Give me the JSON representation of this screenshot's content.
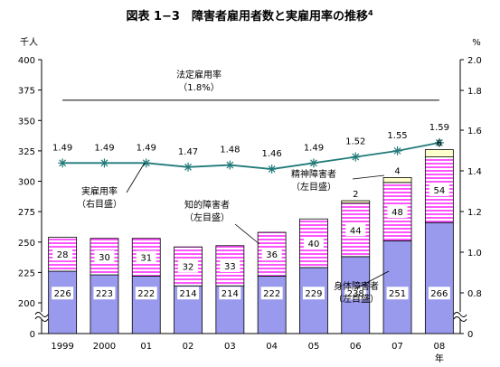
{
  "chart_data": {
    "type": "bar",
    "title": "図表 1−3　障害者雇用者数と実雇用率の推移",
    "title_sup": "4",
    "left_axis": {
      "unit": "千人",
      "ticks": [
        "0",
        "200",
        "225",
        "250",
        "275",
        "300",
        "325",
        "350",
        "375",
        "400"
      ],
      "ylim": [
        200,
        400
      ],
      "axis_break": true
    },
    "right_axis": {
      "unit": "%",
      "ticks": [
        "0",
        "0.8",
        "1.0",
        "1.2",
        "1.4",
        "1.6",
        "1.8",
        "2.0"
      ],
      "ylim": [
        0.8,
        2.0
      ],
      "axis_break": true
    },
    "categories": [
      "1999",
      "2000",
      "01",
      "02",
      "03",
      "04",
      "05",
      "06",
      "07",
      "08"
    ],
    "x_unit": "年",
    "series": [
      {
        "name": "身体障害者（左目盛）",
        "axis": "left",
        "color": "#9999ee",
        "values": [
          226,
          223,
          222,
          214,
          214,
          222,
          229,
          238,
          251,
          266
        ]
      },
      {
        "name": "知的障害者（左目盛）",
        "axis": "left",
        "color": "#ff66ff",
        "pattern": "horizontal-stripes",
        "values": [
          28,
          30,
          31,
          32,
          33,
          36,
          40,
          44,
          48,
          54
        ]
      },
      {
        "name": "精神障害者（左目盛）",
        "axis": "left",
        "color": "#ffffcc",
        "values": [
          null,
          null,
          null,
          null,
          null,
          null,
          null,
          2,
          4,
          6
        ]
      },
      {
        "name": "実雇用率（右目盛）",
        "type": "line",
        "axis": "right",
        "color": "#227a7a",
        "values": [
          1.49,
          1.49,
          1.49,
          1.47,
          1.48,
          1.46,
          1.49,
          1.52,
          1.55,
          1.59
        ]
      }
    ],
    "reference_line": {
      "label": "法定雇用率",
      "value_label": "（1.8%）",
      "value": 1.8,
      "axis": "right"
    },
    "annotations": {
      "jitsu": [
        "実雇用率",
        "（右目盛）"
      ],
      "chiteki": [
        "知的障害者",
        "（左目盛）"
      ],
      "seishin": [
        "精神障害者",
        "（左目盛）"
      ],
      "shintai": [
        "身体障害者",
        "（左目盛）"
      ]
    }
  }
}
